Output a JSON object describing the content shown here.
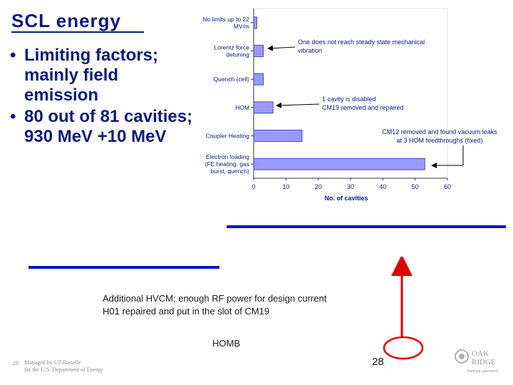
{
  "slide": {
    "title": "SCL energy",
    "bullets": [
      "Limiting factors; mainly field emission",
      "80 out of 81 cavities; 930 MeV +10 MeV"
    ],
    "bullet_marker": "•",
    "hvcm_lines": [
      "Additional HVCM; enough RF power for design current",
      "H01 repaired and put in the slot of CM19"
    ],
    "homb_label": "HOMB",
    "page_number": "28",
    "footer_number": "28",
    "footer_lines": [
      "Managed by UT-Battelle",
      "for the U.S. Department of Energy"
    ],
    "logo_text": [
      "OAK",
      "RIDGE",
      "National Laboratory"
    ],
    "colors": {
      "title": "#0a1a7a",
      "bar_fill": "#9999ff",
      "bar_stroke": "#333399",
      "blue_rule": "#0014c8",
      "red_arrow": "#e00000"
    }
  },
  "annotations": {
    "note1": [
      "One does not reach steady state mechanical",
      "vibration"
    ],
    "note2": [
      "1 cavity is disabled",
      "CM19 removed and repaired"
    ],
    "note3": [
      "CM12 removed and found vacuum leaks",
      "at 3 HOM feedthroughs (fixed)"
    ]
  },
  "chart_data": {
    "type": "bar",
    "orientation": "horizontal",
    "categories": [
      [
        "No limits up to 22",
        "MV/m"
      ],
      [
        "Lorentz force",
        "detuning"
      ],
      [
        "Quench (cell)"
      ],
      [
        "HOM"
      ],
      [
        "Coupler Heating"
      ],
      [
        "Electron loading",
        "(FE heating, gas",
        "burst, quench)"
      ]
    ],
    "values": [
      1,
      3,
      3,
      6,
      15,
      53
    ],
    "xlabel": "No. of cavities",
    "ylabel": "",
    "xlim": [
      0,
      60
    ],
    "xticks": [
      0,
      10,
      20,
      30,
      40,
      50,
      60
    ],
    "grid": false
  }
}
